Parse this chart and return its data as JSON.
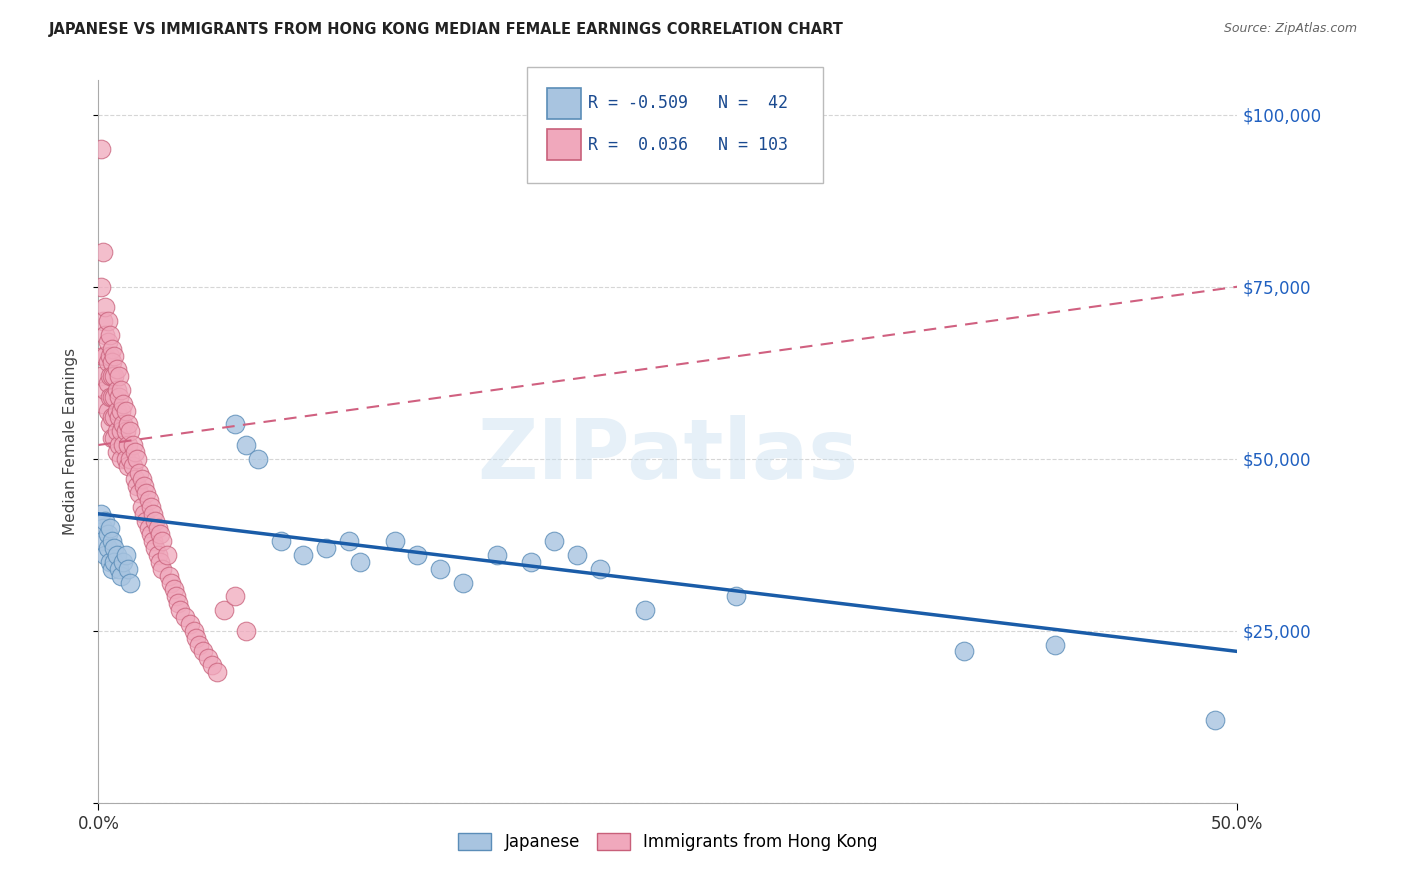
{
  "title": "JAPANESE VS IMMIGRANTS FROM HONG KONG MEDIAN FEMALE EARNINGS CORRELATION CHART",
  "source": "Source: ZipAtlas.com",
  "ylabel": "Median Female Earnings",
  "legend1_label": "Japanese",
  "legend2_label": "Immigrants from Hong Kong",
  "R1": -0.509,
  "N1": 42,
  "R2": 0.036,
  "N2": 103,
  "watermark": "ZIPatlas",
  "blue_color": "#a8c4e0",
  "blue_edge": "#5b8db8",
  "blue_line_color": "#1a5ca8",
  "pink_color": "#f0a8bc",
  "pink_edge": "#c8607a",
  "pink_line_color": "#d06080",
  "blue_scatter_x": [
    0.001,
    0.002,
    0.002,
    0.003,
    0.003,
    0.004,
    0.004,
    0.005,
    0.005,
    0.006,
    0.006,
    0.007,
    0.007,
    0.008,
    0.009,
    0.01,
    0.011,
    0.012,
    0.013,
    0.014,
    0.06,
    0.065,
    0.07,
    0.08,
    0.09,
    0.1,
    0.11,
    0.115,
    0.13,
    0.14,
    0.15,
    0.16,
    0.175,
    0.19,
    0.2,
    0.21,
    0.22,
    0.24,
    0.28,
    0.38,
    0.42,
    0.49
  ],
  "blue_scatter_y": [
    42000,
    40000,
    38000,
    41000,
    36000,
    39000,
    37000,
    40000,
    35000,
    38000,
    34000,
    37000,
    35000,
    36000,
    34000,
    33000,
    35000,
    36000,
    34000,
    32000,
    55000,
    52000,
    50000,
    38000,
    36000,
    37000,
    38000,
    35000,
    38000,
    36000,
    34000,
    32000,
    36000,
    35000,
    38000,
    36000,
    34000,
    28000,
    30000,
    22000,
    23000,
    12000
  ],
  "pink_scatter_x": [
    0.001,
    0.001,
    0.001,
    0.002,
    0.002,
    0.002,
    0.002,
    0.003,
    0.003,
    0.003,
    0.003,
    0.004,
    0.004,
    0.004,
    0.004,
    0.004,
    0.005,
    0.005,
    0.005,
    0.005,
    0.005,
    0.006,
    0.006,
    0.006,
    0.006,
    0.006,
    0.006,
    0.007,
    0.007,
    0.007,
    0.007,
    0.007,
    0.008,
    0.008,
    0.008,
    0.008,
    0.008,
    0.009,
    0.009,
    0.009,
    0.009,
    0.01,
    0.01,
    0.01,
    0.01,
    0.011,
    0.011,
    0.011,
    0.012,
    0.012,
    0.012,
    0.013,
    0.013,
    0.013,
    0.014,
    0.014,
    0.015,
    0.015,
    0.016,
    0.016,
    0.017,
    0.017,
    0.018,
    0.018,
    0.019,
    0.019,
    0.02,
    0.02,
    0.021,
    0.021,
    0.022,
    0.022,
    0.023,
    0.023,
    0.024,
    0.024,
    0.025,
    0.025,
    0.026,
    0.026,
    0.027,
    0.027,
    0.028,
    0.028,
    0.03,
    0.031,
    0.032,
    0.033,
    0.034,
    0.035,
    0.036,
    0.038,
    0.04,
    0.042,
    0.043,
    0.044,
    0.046,
    0.048,
    0.05,
    0.052,
    0.055,
    0.06,
    0.065
  ],
  "pink_scatter_y": [
    95000,
    75000,
    62000,
    80000,
    70000,
    65000,
    58000,
    72000,
    68000,
    65000,
    60000,
    70000,
    67000,
    64000,
    61000,
    57000,
    68000,
    65000,
    62000,
    59000,
    55000,
    66000,
    64000,
    62000,
    59000,
    56000,
    53000,
    65000,
    62000,
    59000,
    56000,
    53000,
    63000,
    60000,
    57000,
    54000,
    51000,
    62000,
    59000,
    56000,
    52000,
    60000,
    57000,
    54000,
    50000,
    58000,
    55000,
    52000,
    57000,
    54000,
    50000,
    55000,
    52000,
    49000,
    54000,
    50000,
    52000,
    49000,
    51000,
    47000,
    50000,
    46000,
    48000,
    45000,
    47000,
    43000,
    46000,
    42000,
    45000,
    41000,
    44000,
    40000,
    43000,
    39000,
    42000,
    38000,
    41000,
    37000,
    40000,
    36000,
    39000,
    35000,
    38000,
    34000,
    36000,
    33000,
    32000,
    31000,
    30000,
    29000,
    28000,
    27000,
    26000,
    25000,
    24000,
    23000,
    22000,
    21000,
    20000,
    19000,
    28000,
    30000,
    25000
  ],
  "blue_trendline_y0": 42000,
  "blue_trendline_y1": 22000,
  "pink_trendline_y0": 52000,
  "pink_trendline_y1": 75000,
  "yticks": [
    0,
    25000,
    50000,
    75000,
    100000
  ],
  "ytick_labels": [
    "",
    "$25,000",
    "$50,000",
    "$75,000",
    "$100,000"
  ],
  "xmin": 0.0,
  "xmax": 0.5,
  "ymin": 0,
  "ymax": 105000
}
